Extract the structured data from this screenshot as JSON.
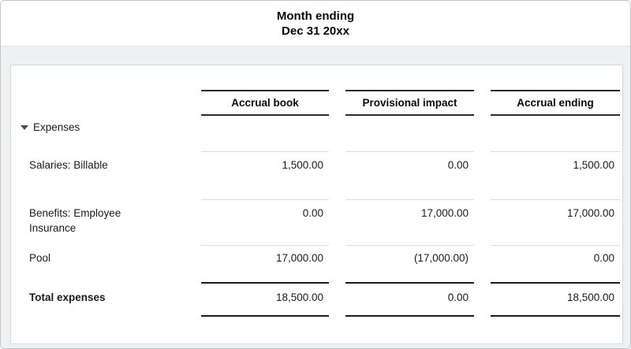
{
  "title": {
    "line1": "Month ending",
    "line2": "Dec 31 20xx"
  },
  "table": {
    "columns": [
      "Accrual book",
      "Provisional impact",
      "Accrual ending"
    ],
    "group": {
      "label": "Expenses",
      "icon": "collapse-caret-icon",
      "state": "expanded"
    },
    "rows": [
      {
        "label": "Salaries: Billable",
        "values": [
          "1,500.00",
          "0.00",
          "1,500.00"
        ]
      },
      {
        "label": "Benefits: Employee Insurance",
        "values": [
          "0.00",
          "17,000.00",
          "17,000.00"
        ]
      },
      {
        "label": "Pool",
        "values": [
          "17,000.00",
          "(17,000.00)",
          "0.00"
        ]
      }
    ],
    "total": {
      "label": "Total expenses",
      "values": [
        "18,500.00",
        "0.00",
        "18,500.00"
      ]
    }
  },
  "colors": {
    "page_background": "#eef1f2",
    "card_background": "#ffffff",
    "rule_dark": "#2b2b2b",
    "rule_light": "#d9dcdd",
    "caret": "#3f4f63",
    "text": "#1b1b1b"
  }
}
